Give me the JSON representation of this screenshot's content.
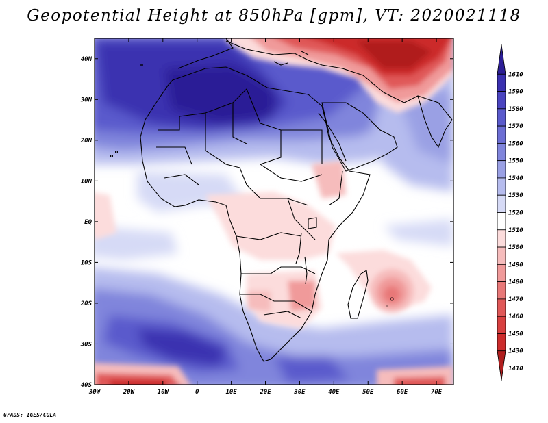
{
  "title": "Geopotential Height at 850hPa [gpm], VT: 2020021118",
  "credit": "GrADS: IGES/COLA",
  "map": {
    "lat_labels": [
      "40N",
      "30N",
      "20N",
      "10N",
      "EQ",
      "10S",
      "20S",
      "30S",
      "40S"
    ],
    "lon_labels": [
      "30W",
      "20W",
      "10W",
      "0",
      "10E",
      "20E",
      "30E",
      "40E",
      "50E",
      "60E",
      "70E"
    ],
    "lat_range": [
      -40,
      45
    ],
    "lon_range": [
      -30,
      75
    ]
  },
  "colorbar": {
    "levels": [
      "1610",
      "1590",
      "1580",
      "1570",
      "1560",
      "1550",
      "1540",
      "1530",
      "1520",
      "1510",
      "1500",
      "1490",
      "1480",
      "1470",
      "1460",
      "1450",
      "1430",
      "1410"
    ],
    "colors": [
      "#2c1e96",
      "#3a30b0",
      "#4a44c0",
      "#5a5acc",
      "#6c6ed4",
      "#8085dc",
      "#9aa0e4",
      "#b6bcee",
      "#d6daf6",
      "#ffffff",
      "#fcdcdc",
      "#f6bcbc",
      "#f09a9a",
      "#e87878",
      "#e05858",
      "#d84040",
      "#cc2c2c",
      "#b01e1e"
    ]
  }
}
